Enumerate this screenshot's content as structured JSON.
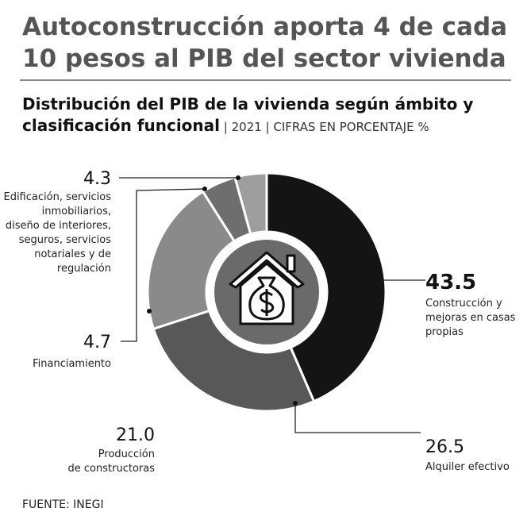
{
  "title": [
    "Autoconstrucción aporta 4 de cada",
    "10 pesos al PIB del sector vivienda"
  ],
  "chart_data": {
    "type": "donut",
    "title": "Distribución del PIB de la vivienda según ámbito y",
    "subtitle": [
      "clasificación funcional",
      " | 2021 | CIFRAS EN PORCENTAJE %"
    ],
    "categories": [
      [
        "Construcción y",
        "mejoras en casas",
        "propias"
      ],
      [
        "Alquiler efectivo"
      ],
      [
        "Producción",
        "de constructoras"
      ],
      [
        "Financiamiento"
      ],
      [
        "Edificación, servicios",
        "inmobiliarios,",
        "diseño de interiores,",
        "seguros, servicios",
        "notariales y de",
        "regulación"
      ]
    ],
    "values": [
      43.5,
      26.5,
      21.0,
      4.7,
      4.3
    ],
    "value_labels": [
      "43.5",
      "26.5",
      "21.0",
      "4.7",
      "4.3"
    ],
    "colors": [
      "#141414",
      "#585858",
      "#8a8a8a",
      "#6e6e6e",
      "#9e9e9e"
    ]
  },
  "source": "FUENTE: INEGI"
}
